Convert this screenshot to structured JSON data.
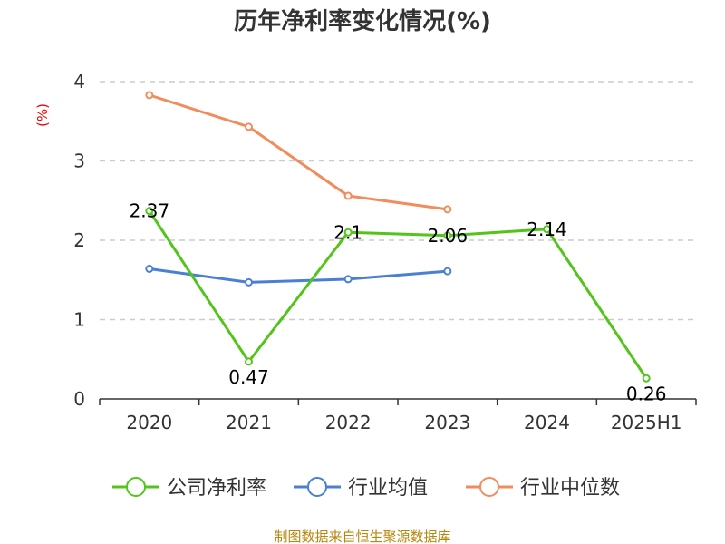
{
  "chart_data": {
    "type": "line",
    "title": "历年净利率变化情况(%)",
    "ylabel": "(%)",
    "xlabel": "",
    "categories": [
      "2020",
      "2021",
      "2022",
      "2023",
      "2024",
      "2025H1"
    ],
    "ylim": [
      0,
      4
    ],
    "yticks": [
      "0",
      "1",
      "2",
      "3",
      "4"
    ],
    "grid": true,
    "legend_position": "bottom",
    "series": [
      {
        "name": "公司净利率",
        "color": "#52c41a",
        "values": [
          2.37,
          0.47,
          2.1,
          2.06,
          2.14,
          0.26
        ],
        "labels": [
          "2.37",
          "0.47",
          "2.1",
          "2.06",
          "2.14",
          "0.26"
        ]
      },
      {
        "name": "行业均值",
        "color": "#4a7fd4",
        "values": [
          1.64,
          1.47,
          1.51,
          1.61,
          null,
          null
        ]
      },
      {
        "name": "行业中位数",
        "color": "#f28c5c",
        "values": [
          3.83,
          3.43,
          2.56,
          2.39,
          null,
          null
        ]
      }
    ]
  },
  "source_text": "制图数据来自恒生聚源数据库"
}
